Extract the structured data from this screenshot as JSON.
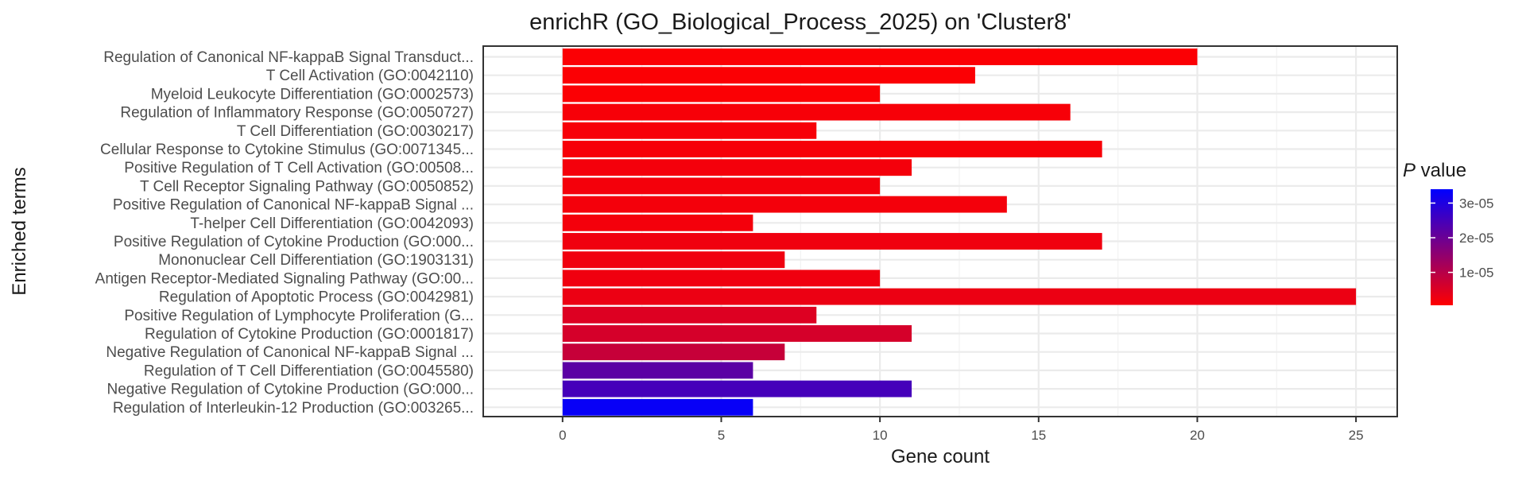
{
  "chart_data": {
    "type": "bar",
    "orientation": "horizontal",
    "title": "enrichR (GO_Biological_Process_2025) on 'Cluster8'",
    "xlabel": "Gene count",
    "ylabel": "Enriched terms",
    "xlim": [
      -2.5,
      26.3
    ],
    "xticks": [
      0,
      5,
      10,
      15,
      20,
      25
    ],
    "grid": true,
    "legend": {
      "title_italic": "P",
      "title_rest": " value",
      "placement": "right",
      "ticks": [
        "1e-05",
        "2e-05",
        "3e-05"
      ],
      "tick_values": [
        1e-05,
        2e-05,
        3e-05
      ],
      "range": [
        5e-07,
        3.4e-05
      ],
      "low_color": "#ff0000",
      "high_color": "#0000ff"
    },
    "categories": [
      "Regulation of Canonical NF-kappaB Signal Transduct...",
      "T Cell Activation (GO:0042110)",
      "Myeloid Leukocyte Differentiation (GO:0002573)",
      "Regulation of Inflammatory Response (GO:0050727)",
      "T Cell Differentiation (GO:0030217)",
      "Cellular Response to Cytokine Stimulus (GO:0071345...",
      "Positive Regulation of T Cell Activation (GO:00508...",
      "T Cell Receptor Signaling Pathway (GO:0050852)",
      "Positive Regulation of Canonical NF-kappaB Signal ...",
      "T-helper Cell Differentiation (GO:0042093)",
      "Positive Regulation of Cytokine Production (GO:000...",
      "Mononuclear Cell Differentiation (GO:1903131)",
      "Antigen Receptor-Mediated Signaling Pathway (GO:00...",
      "Regulation of Apoptotic Process (GO:0042981)",
      "Positive Regulation of Lymphocyte Proliferation (G...",
      "Regulation of Cytokine Production (GO:0001817)",
      "Negative Regulation of Canonical NF-kappaB Signal ...",
      "Regulation of T Cell Differentiation (GO:0045580)",
      "Negative Regulation of Cytokine Production (GO:000...",
      "Regulation of Interleukin-12 Production (GO:003265..."
    ],
    "values": [
      20,
      13,
      10,
      16,
      8,
      17,
      11,
      10,
      14,
      6,
      17,
      7,
      10,
      25,
      8,
      11,
      7,
      6,
      11,
      6
    ],
    "p_values": [
      1e-06,
      1e-06,
      1e-06,
      1.5e-06,
      1.5e-06,
      1.5e-06,
      2e-06,
      2e-06,
      2e-06,
      2e-06,
      2.5e-06,
      2.5e-06,
      2.5e-06,
      3e-06,
      5e-06,
      6e-06,
      8e-06,
      2.2e-05,
      2.5e-05,
      3.3e-05
    ]
  }
}
